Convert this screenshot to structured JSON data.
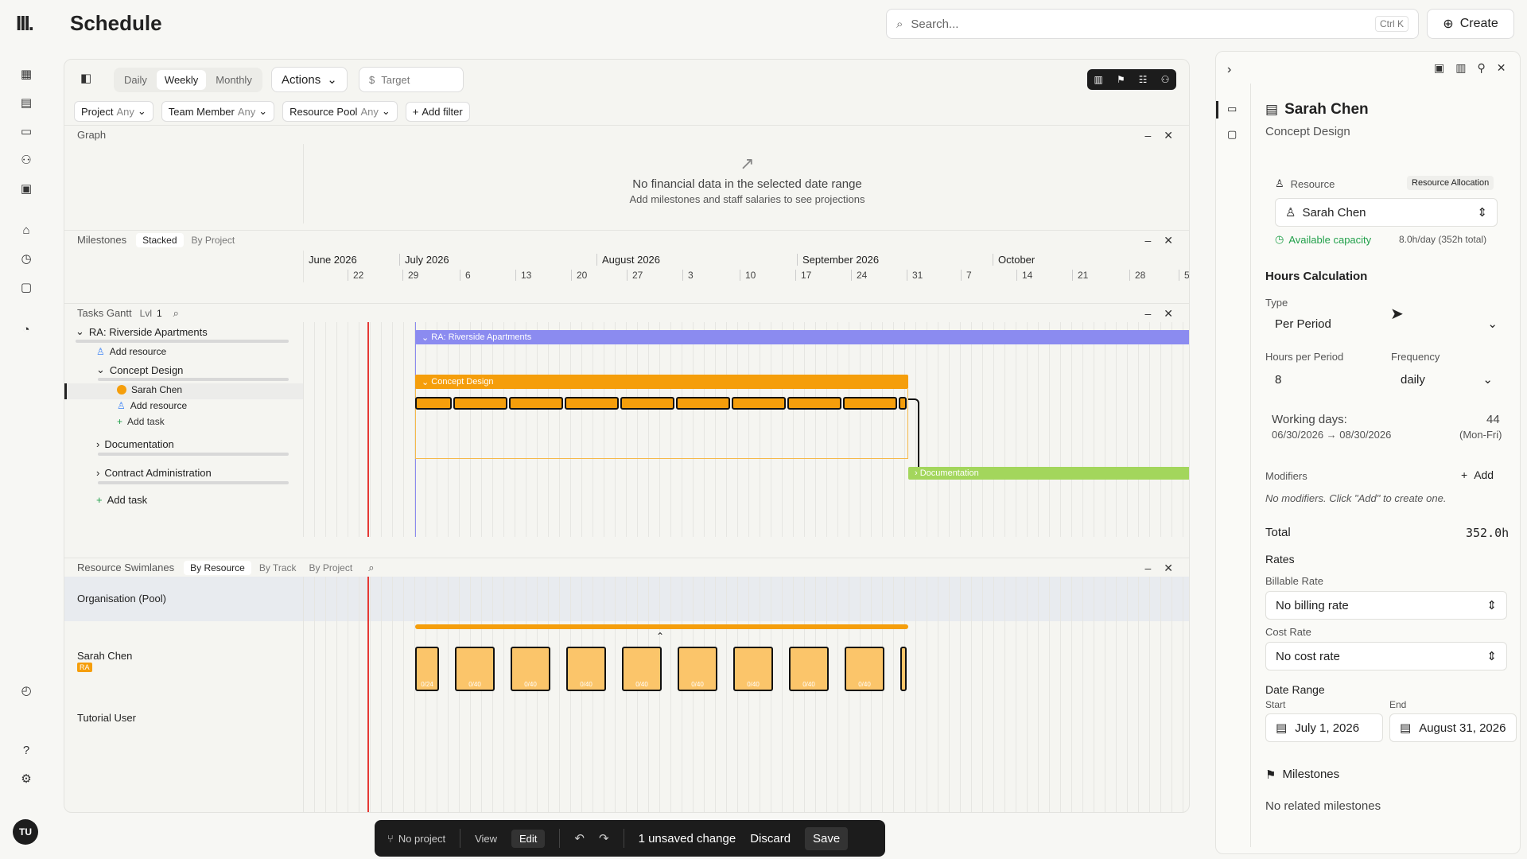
{
  "app": {
    "logo": "III.",
    "page_title": "Schedule"
  },
  "search": {
    "placeholder": "Search...",
    "shortcut": "Ctrl K"
  },
  "create_label": "Create",
  "user_initials": "TU",
  "toolbar": {
    "views": [
      "Daily",
      "Weekly",
      "Monthly"
    ],
    "active_view": "Weekly",
    "actions_label": "Actions",
    "target_placeholder": "Target"
  },
  "filters": [
    {
      "name": "Project",
      "value": "Any"
    },
    {
      "name": "Team Member",
      "value": "Any"
    },
    {
      "name": "Resource Pool",
      "value": "Any"
    }
  ],
  "add_filter_label": "Add filter",
  "graph": {
    "title": "Graph",
    "empty_title": "No financial data in the selected date range",
    "empty_sub": "Add milestones and staff salaries to see projections"
  },
  "milestones": {
    "title": "Milestones",
    "modes": [
      "Stacked",
      "By Project"
    ],
    "active_mode": "Stacked"
  },
  "timeline": {
    "months": [
      {
        "label": "June 2026"
      },
      {
        "label": "July 2026"
      },
      {
        "label": "August 2026"
      },
      {
        "label": "September 2026"
      },
      {
        "label": "October"
      }
    ],
    "weeks": [
      "22",
      "29",
      "6",
      "13",
      "20",
      "27",
      "3",
      "10",
      "17",
      "24",
      "31",
      "7",
      "14",
      "21",
      "28",
      "5"
    ]
  },
  "tasks_gantt": {
    "title": "Tasks Gantt",
    "level_label": "Lvl",
    "level_value": "1",
    "rows": {
      "project": "RA: Riverside Apartments",
      "add_resource_1": "Add resource",
      "concept_design": "Concept Design",
      "sarah": "Sarah Chen",
      "add_resource_2": "Add resource",
      "add_task_inner": "Add task",
      "documentation": "Documentation",
      "contract_admin": "Contract Administration",
      "add_task": "Add task"
    },
    "bars": {
      "project": "RA: Riverside Apartments",
      "concept": "Concept Design",
      "documentation": "Documentation"
    }
  },
  "swimlanes": {
    "title": "Resource Swimlanes",
    "modes": [
      "By Resource",
      "By Track",
      "By Project"
    ],
    "active_mode": "By Resource",
    "rows": [
      {
        "name": "Organisation (Pool)"
      },
      {
        "name": "Sarah Chen",
        "badge": "RA"
      },
      {
        "name": "Tutorial User"
      }
    ],
    "block_labels": [
      "0/24",
      "0/40",
      "0/40",
      "0/40",
      "0/40",
      "0/40",
      "0/40",
      "0/40",
      "0/40"
    ]
  },
  "bottom_bar": {
    "project": "No project",
    "view": "View",
    "edit": "Edit",
    "unsaved": "1 unsaved change",
    "discard": "Discard",
    "save": "Save"
  },
  "panel": {
    "title": "Sarah Chen",
    "subtitle": "Concept Design",
    "resource_label": "Resource",
    "resource_badge": "Resource Allocation",
    "resource_value": "Sarah Chen",
    "capacity_label": "Available capacity",
    "capacity_value": "8.0h/day (352h total)",
    "hours_calc": "Hours Calculation",
    "type_label": "Type",
    "type_value": "Per Period",
    "hours_per_period_label": "Hours per Period",
    "hours_per_period_value": "8",
    "frequency_label": "Frequency",
    "frequency_value": "daily",
    "working_days_label": "Working days:",
    "working_days_value": "44",
    "date_span": "06/30/2026 → 08/30/2026",
    "weekdays": "(Mon-Fri)",
    "modifiers_label": "Modifiers",
    "add_label": "Add",
    "modifiers_empty": "No modifiers. Click \"Add\" to create one.",
    "total_label": "Total",
    "total_value": "352.0h",
    "rates_label": "Rates",
    "billable_label": "Billable Rate",
    "billable_value": "No billing rate",
    "cost_label": "Cost Rate",
    "cost_value": "No cost rate",
    "date_range_label": "Date Range",
    "start_label": "Start",
    "start_value": "July 1, 2026",
    "end_label": "End",
    "end_value": "August 31, 2026",
    "milestones_label": "Milestones",
    "milestones_empty": "No related milestones"
  },
  "colors": {
    "project_bar": "#8b8bf0",
    "concept_bar": "#f59e0b",
    "doc_bar": "#a3d65c",
    "today_line": "#e53935"
  }
}
